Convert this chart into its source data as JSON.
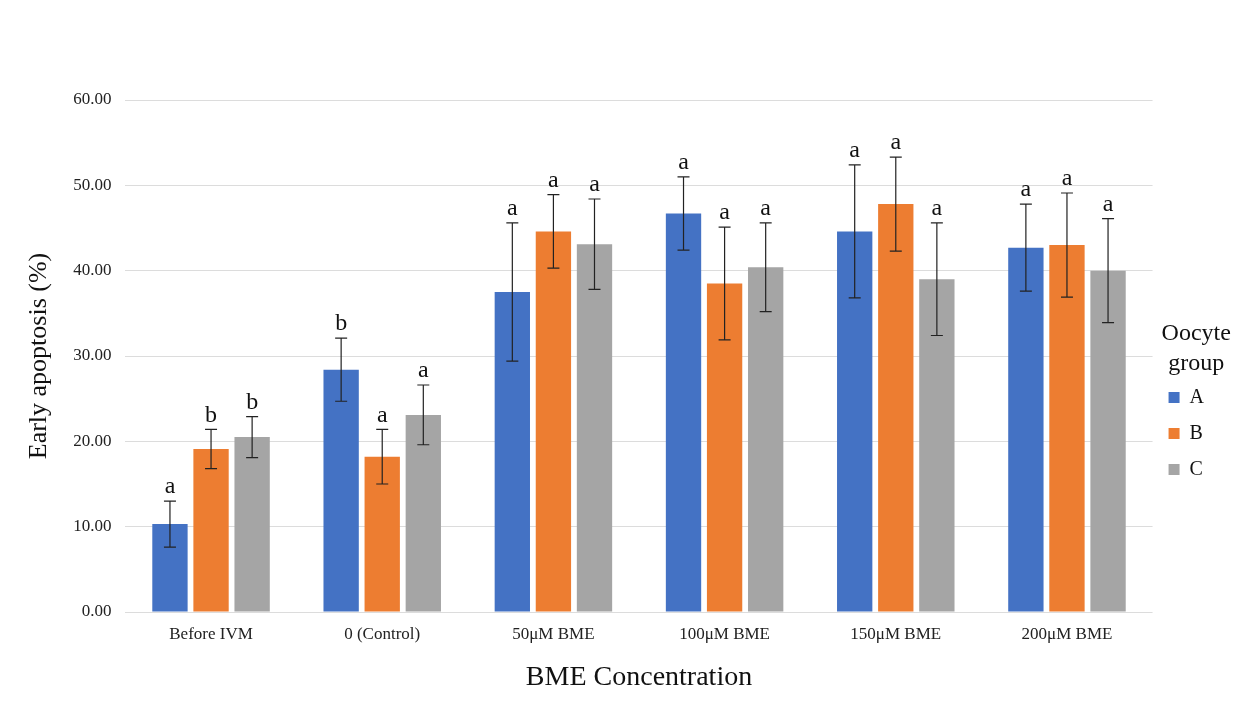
{
  "chart_data": {
    "type": "bar",
    "xlabel": "BME Concentration",
    "ylabel": "Early apoptosis (%)",
    "legend_title": "Oocyte group",
    "categories": [
      "Before IVM",
      "0 (Control)",
      "50μM BME",
      "100μM BME",
      "150μM BME",
      "200μM BME"
    ],
    "series": [
      {
        "name": "A",
        "color": "#4472c4",
        "values": [
          10.3,
          28.4,
          37.5,
          46.7,
          44.6,
          42.7
        ],
        "errors": [
          2.7,
          3.7,
          8.1,
          4.3,
          7.8,
          5.1
        ],
        "value_labels": [
          "a",
          "b",
          "a",
          "a",
          "a",
          "a"
        ]
      },
      {
        "name": "B",
        "color": "#ed7d31",
        "values": [
          19.1,
          18.2,
          44.6,
          38.5,
          47.8,
          43.0
        ],
        "errors": [
          2.3,
          3.2,
          4.3,
          6.6,
          5.5,
          6.1
        ],
        "value_labels": [
          "b",
          "a",
          "a",
          "a",
          "a",
          "a"
        ]
      },
      {
        "name": "C",
        "color": "#a5a5a5",
        "values": [
          20.5,
          23.1,
          43.1,
          40.4,
          39.0,
          40.0
        ],
        "errors": [
          2.4,
          3.5,
          5.3,
          5.2,
          6.6,
          6.1
        ],
        "value_labels": [
          "b",
          "a",
          "a",
          "a",
          "a",
          "a"
        ]
      }
    ],
    "ylim": [
      0,
      60
    ],
    "yticks": [
      {
        "value": 0,
        "label": "0.00"
      },
      {
        "value": 10,
        "label": "10.00"
      },
      {
        "value": 20,
        "label": "20.00"
      },
      {
        "value": 30,
        "label": "30.00"
      },
      {
        "value": 40,
        "label": "40.00"
      },
      {
        "value": 50,
        "label": "50.00"
      },
      {
        "value": 60,
        "label": "60.00"
      }
    ],
    "grid": "y",
    "legend": "right"
  }
}
